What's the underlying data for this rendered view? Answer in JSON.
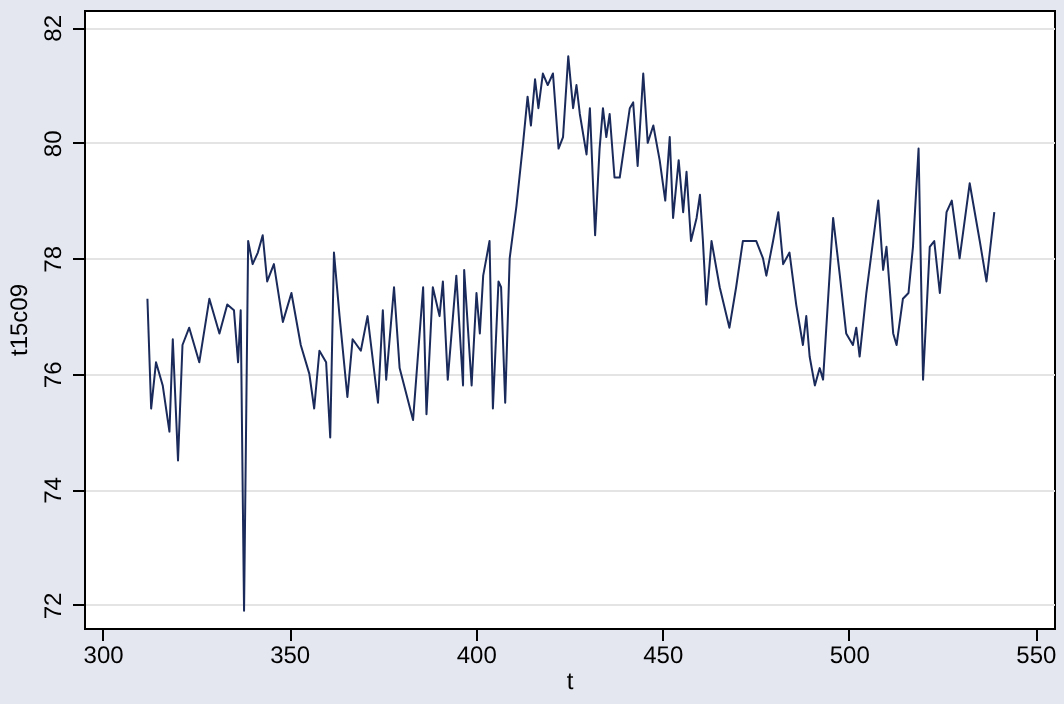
{
  "chart_data": {
    "type": "line",
    "xlabel": "t",
    "ylabel": "t15c09",
    "xlim": [
      295,
      555
    ],
    "ylim": [
      71.6,
      82.3
    ],
    "xticks": [
      300,
      350,
      400,
      450,
      500,
      550
    ],
    "yticks": [
      72,
      74,
      76,
      78,
      80,
      82
    ],
    "grid": "y",
    "marker": "none",
    "line_style": "solid",
    "series": [
      {
        "color": "#1a2a5a",
        "x": [
          312.0,
          313.0,
          314.3,
          316.1,
          317.9,
          318.8,
          320.2,
          321.4,
          323.2,
          325.9,
          328.6,
          331.3,
          333.4,
          335.2,
          336.3,
          337.0,
          337.9,
          339.0,
          340.2,
          341.6,
          342.9,
          344.1,
          345.9,
          348.3,
          350.6,
          353.1,
          355.4,
          356.7,
          358.1,
          359.9,
          361.0,
          362.0,
          363.5,
          365.6,
          367.0,
          369.2,
          371.0,
          373.8,
          375.1,
          376.0,
          378.1,
          379.6,
          383.2,
          385.9,
          386.8,
          388.5,
          390.3,
          391.2,
          392.5,
          394.8,
          396.6,
          396.9,
          398.9,
          400.2,
          401.1,
          402.0,
          403.7,
          404.6,
          406.1,
          406.8,
          407.9,
          409.1,
          410.9,
          412.7,
          413.9,
          414.8,
          415.9,
          416.8,
          418.0,
          419.3,
          420.7,
          422.2,
          423.4,
          424.8,
          426.1,
          427.0,
          427.9,
          429.7,
          430.6,
          432.0,
          433.2,
          434.1,
          435.0,
          435.9,
          437.2,
          438.6,
          441.3,
          442.2,
          443.4,
          444.9,
          446.1,
          447.6,
          449.3,
          450.8,
          452.0,
          452.9,
          454.4,
          455.6,
          456.5,
          457.7,
          459.2,
          460.1,
          460.9,
          461.8,
          463.2,
          465.4,
          468.0,
          469.8,
          471.6,
          473.4,
          475.2,
          477.0,
          477.9,
          479.7,
          481.1,
          482.4,
          484.1,
          485.9,
          487.7,
          488.6,
          489.5,
          490.9,
          492.2,
          493.1,
          495.8,
          497.6,
          499.3,
          501.1,
          502.0,
          502.9,
          504.7,
          507.9,
          509.2,
          510.1,
          511.9,
          512.8,
          514.5,
          516.0,
          517.2,
          518.7,
          519.9,
          521.7,
          522.9,
          524.4,
          526.2,
          527.6,
          529.7,
          532.4,
          535.1,
          536.9,
          539.0
        ],
        "values": [
          77.3,
          75.4,
          76.2,
          75.8,
          75.0,
          76.6,
          74.5,
          76.5,
          76.8,
          76.2,
          77.3,
          76.7,
          77.2,
          77.1,
          76.2,
          77.1,
          71.9,
          78.3,
          77.9,
          78.1,
          78.4,
          77.6,
          77.9,
          76.9,
          77.4,
          76.5,
          76.0,
          75.4,
          76.4,
          76.2,
          74.9,
          78.1,
          77.0,
          75.6,
          76.6,
          76.4,
          77.0,
          75.5,
          77.1,
          75.9,
          77.5,
          76.1,
          75.2,
          77.5,
          75.3,
          77.5,
          77.0,
          77.6,
          75.9,
          77.7,
          75.8,
          77.8,
          75.8,
          77.4,
          76.7,
          77.7,
          78.3,
          75.4,
          77.6,
          77.5,
          75.5,
          78.0,
          78.9,
          80.0,
          80.8,
          80.3,
          81.1,
          80.6,
          81.2,
          81.0,
          81.2,
          79.9,
          80.1,
          81.5,
          80.6,
          81.0,
          80.5,
          79.8,
          80.6,
          78.4,
          79.9,
          80.6,
          80.1,
          80.5,
          79.4,
          79.4,
          80.6,
          80.7,
          79.6,
          81.2,
          80.0,
          80.3,
          79.7,
          79.0,
          80.1,
          78.7,
          79.7,
          78.8,
          79.5,
          78.3,
          78.7,
          79.1,
          78.3,
          77.2,
          78.3,
          77.5,
          76.8,
          77.5,
          78.3,
          78.3,
          78.3,
          78.0,
          77.7,
          78.3,
          78.8,
          77.9,
          78.1,
          77.2,
          76.5,
          77.0,
          76.3,
          75.8,
          76.1,
          75.9,
          78.7,
          77.7,
          76.7,
          76.5,
          76.8,
          76.3,
          77.4,
          79.0,
          77.8,
          78.2,
          76.7,
          76.5,
          77.3,
          77.4,
          78.2,
          79.9,
          75.9,
          78.2,
          78.3,
          77.4,
          78.8,
          79.0,
          78.0,
          79.3,
          78.3,
          77.6,
          78.8
        ]
      }
    ]
  }
}
